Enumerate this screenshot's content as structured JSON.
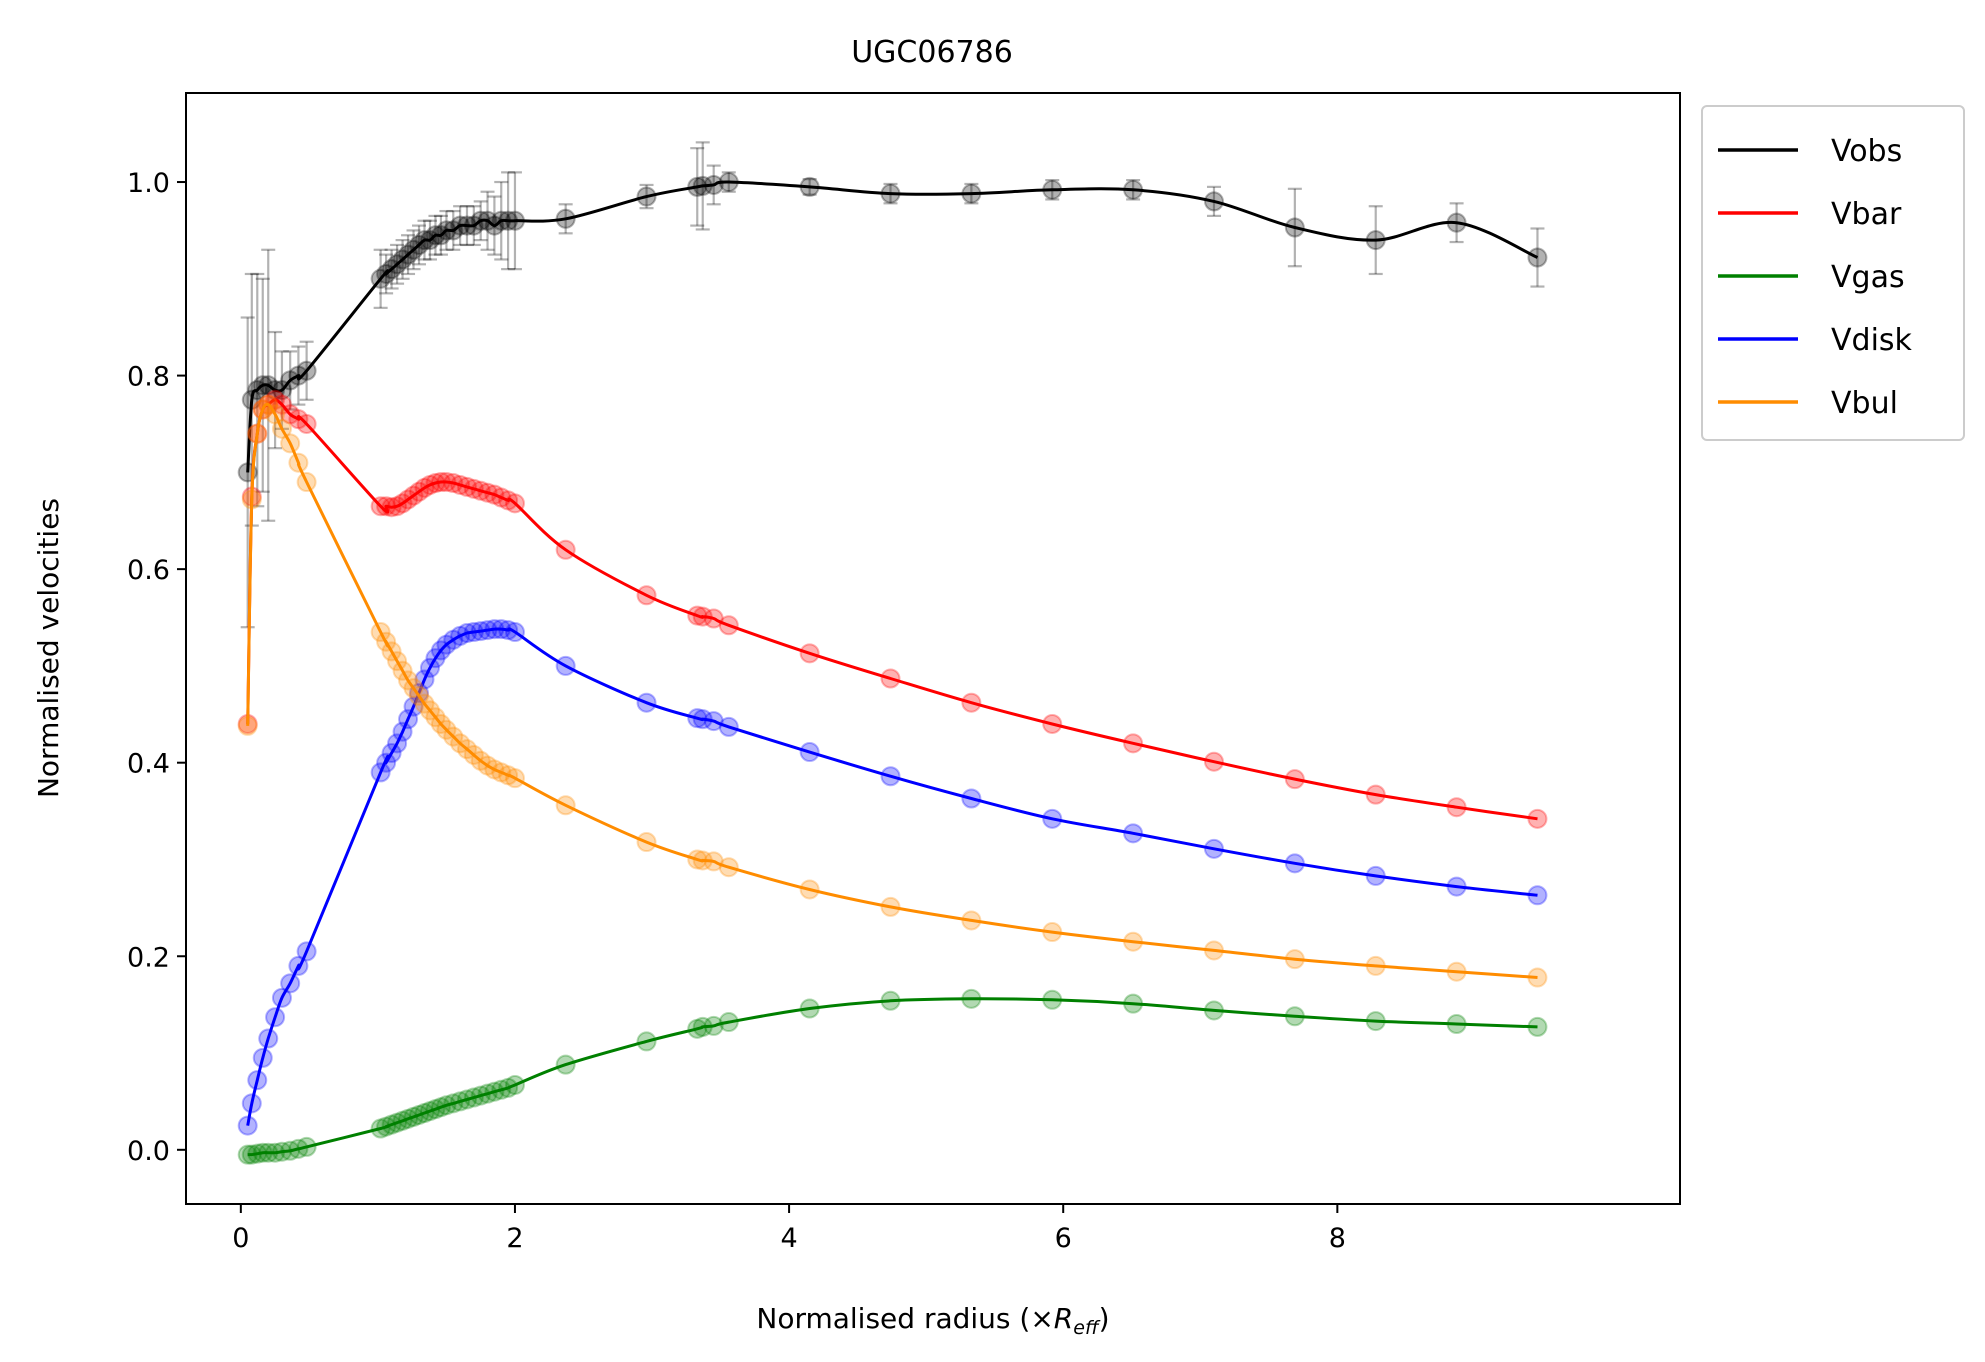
{
  "chart_data": {
    "type": "line",
    "title": "UGC06786",
    "xlabel_main": "Normalised radius (×",
    "xlabel_italic": "R",
    "xlabel_sub": "eff",
    "xlabel_close": ")",
    "ylabel": "Normalised velocities",
    "xlim": [
      -0.4,
      10.5
    ],
    "ylim": [
      -0.056,
      1.092
    ],
    "xticks": [
      0,
      2,
      4,
      6,
      8
    ],
    "yticks": [
      0.0,
      0.2,
      0.4,
      0.6,
      0.8,
      1.0
    ],
    "legend_position": "outside top-right",
    "x": [
      0.05,
      0.08,
      0.12,
      0.16,
      0.2,
      0.25,
      0.3,
      0.36,
      0.42,
      0.48,
      1.02,
      1.06,
      1.1,
      1.14,
      1.18,
      1.22,
      1.26,
      1.3,
      1.34,
      1.38,
      1.42,
      1.46,
      1.5,
      1.55,
      1.6,
      1.65,
      1.7,
      1.75,
      1.8,
      1.85,
      1.9,
      1.95,
      2.0,
      2.37,
      2.96,
      3.33,
      3.37,
      3.45,
      3.56,
      4.15,
      4.74,
      5.33,
      5.92,
      6.51,
      7.1,
      7.69,
      8.28,
      8.87,
      9.46
    ],
    "series": [
      {
        "name": "Vobs",
        "color": "#000000",
        "values": [
          0.7,
          0.775,
          0.785,
          0.79,
          0.79,
          0.785,
          0.785,
          0.795,
          0.8,
          0.805,
          0.9,
          0.905,
          0.91,
          0.915,
          0.92,
          0.925,
          0.93,
          0.935,
          0.94,
          0.94,
          0.945,
          0.945,
          0.95,
          0.95,
          0.955,
          0.955,
          0.955,
          0.96,
          0.96,
          0.955,
          0.96,
          0.96,
          0.96,
          0.962,
          0.985,
          0.995,
          0.996,
          0.997,
          1.0,
          0.995,
          0.988,
          0.988,
          0.992,
          0.992,
          0.98,
          0.953,
          0.94,
          0.958,
          0.922
        ],
        "errors": [
          0.16,
          0.13,
          0.12,
          0.11,
          0.14,
          0.06,
          0.04,
          0.03,
          0.03,
          0.03,
          0.03,
          0.02,
          0.02,
          0.02,
          0.02,
          0.02,
          0.02,
          0.02,
          0.02,
          0.02,
          0.02,
          0.02,
          0.02,
          0.02,
          0.02,
          0.02,
          0.02,
          0.02,
          0.03,
          0.03,
          0.04,
          0.05,
          0.05,
          0.015,
          0.012,
          0.04,
          0.045,
          0.02,
          0.01,
          0.008,
          0.01,
          0.01,
          0.01,
          0.01,
          0.015,
          0.04,
          0.035,
          0.02,
          0.03
        ]
      },
      {
        "name": "Vbar",
        "color": "#ff0000",
        "values": [
          0.44,
          0.675,
          0.74,
          0.765,
          0.77,
          0.775,
          0.77,
          0.76,
          0.755,
          0.75,
          0.665,
          0.665,
          0.664,
          0.665,
          0.668,
          0.672,
          0.676,
          0.68,
          0.684,
          0.687,
          0.689,
          0.69,
          0.69,
          0.689,
          0.687,
          0.685,
          0.683,
          0.681,
          0.679,
          0.677,
          0.674,
          0.671,
          0.668,
          0.62,
          0.573,
          0.552,
          0.551,
          0.549,
          0.542,
          0.513,
          0.487,
          0.462,
          0.44,
          0.42,
          0.401,
          0.383,
          0.367,
          0.354,
          0.342
        ]
      },
      {
        "name": "Vgas",
        "color": "#008000",
        "values": [
          -0.005,
          -0.005,
          -0.004,
          -0.003,
          -0.003,
          -0.003,
          -0.002,
          -0.001,
          0.001,
          0.003,
          0.022,
          0.024,
          0.026,
          0.028,
          0.03,
          0.032,
          0.034,
          0.036,
          0.038,
          0.04,
          0.042,
          0.044,
          0.046,
          0.048,
          0.05,
          0.052,
          0.054,
          0.056,
          0.058,
          0.06,
          0.062,
          0.064,
          0.067,
          0.088,
          0.112,
          0.125,
          0.127,
          0.128,
          0.132,
          0.146,
          0.154,
          0.156,
          0.155,
          0.151,
          0.144,
          0.138,
          0.133,
          0.13,
          0.127
        ]
      },
      {
        "name": "Vdisk",
        "color": "#0000ff",
        "values": [
          0.025,
          0.048,
          0.072,
          0.095,
          0.115,
          0.137,
          0.157,
          0.172,
          0.19,
          0.205,
          0.39,
          0.4,
          0.41,
          0.42,
          0.432,
          0.445,
          0.458,
          0.472,
          0.486,
          0.498,
          0.508,
          0.516,
          0.522,
          0.527,
          0.531,
          0.534,
          0.535,
          0.536,
          0.537,
          0.538,
          0.538,
          0.537,
          0.535,
          0.5,
          0.462,
          0.446,
          0.445,
          0.443,
          0.437,
          0.411,
          0.386,
          0.363,
          0.342,
          0.327,
          0.311,
          0.296,
          0.283,
          0.272,
          0.263
        ]
      },
      {
        "name": "Vbul",
        "color": "#ff8c00",
        "values": [
          0.438,
          0.672,
          0.74,
          0.765,
          0.77,
          0.76,
          0.745,
          0.73,
          0.71,
          0.69,
          0.535,
          0.525,
          0.515,
          0.505,
          0.495,
          0.485,
          0.477,
          0.469,
          0.461,
          0.454,
          0.447,
          0.44,
          0.434,
          0.427,
          0.42,
          0.414,
          0.408,
          0.402,
          0.397,
          0.393,
          0.39,
          0.387,
          0.384,
          0.356,
          0.318,
          0.3,
          0.299,
          0.298,
          0.292,
          0.269,
          0.251,
          0.237,
          0.225,
          0.215,
          0.206,
          0.197,
          0.19,
          0.184,
          0.178
        ]
      }
    ]
  }
}
